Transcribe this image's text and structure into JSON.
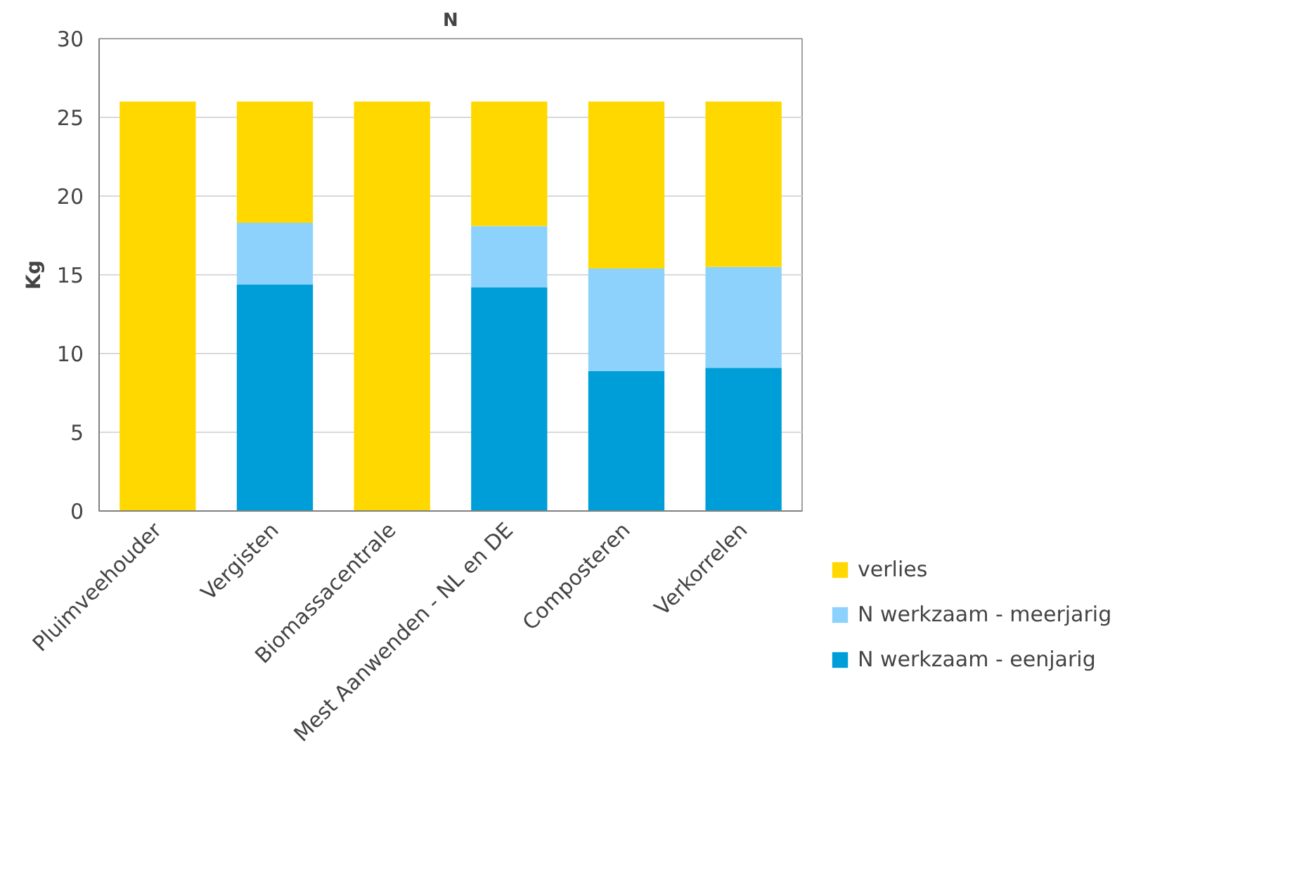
{
  "chart_data": {
    "type": "bar",
    "title": "N",
    "ylabel": "Kg",
    "stacked": true,
    "categories": [
      "Pluimveehouder",
      "Vergisten",
      "Biomassacentrale",
      "Mest Aanwenden - NL en DE",
      "Composteren",
      "Verkorrelen"
    ],
    "series": [
      {
        "name": "N werkzaam - eenjarig",
        "color": "#009ed8",
        "values": [
          0,
          14.4,
          0,
          14.2,
          8.9,
          9.1
        ]
      },
      {
        "name": "N werkzaam - meerjarig",
        "color": "#8dd2fd",
        "values": [
          0,
          3.9,
          0,
          3.9,
          6.5,
          6.4
        ]
      },
      {
        "name": "verlies",
        "color": "#ffd800",
        "values": [
          26,
          7.7,
          26,
          7.9,
          10.6,
          10.5
        ]
      }
    ],
    "ylim": [
      0,
      30
    ],
    "yticks": [
      0,
      5,
      10,
      15,
      20,
      25,
      30
    ],
    "grid": "y",
    "legend": "right"
  }
}
